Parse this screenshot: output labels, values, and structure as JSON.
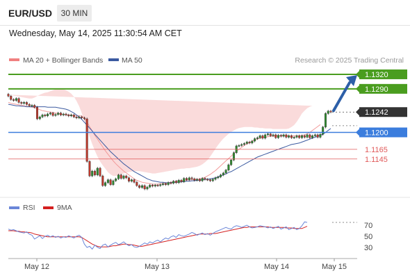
{
  "header": {
    "pair": "EUR/USD",
    "timeframe": "30 MIN"
  },
  "timestamp": "Wednesday, May 14, 2025 11:30:54 AM CET",
  "copyright": "Research © 2025 Trading Central",
  "colors": {
    "up": "#2e8b2e",
    "down": "#c0392b",
    "resistance": "#4a9d1f",
    "pivot": "#3b7ddd",
    "support": "#e05a5a",
    "ma50": "#3b5aa0",
    "bollinger": "#f4b0b0",
    "rsi": "#6a86d8",
    "rsi_ma": "#d42020",
    "last_badge": "#333333",
    "arrow": "#2d5fa8"
  },
  "chart_data": [
    {
      "type": "candlestick",
      "title": "EUR/USD",
      "legend": [
        "MA 20 + Bollinger Bands",
        "MA 50"
      ],
      "legend_position": "top-left",
      "x_ticks": [
        "May 12",
        "May 13",
        "May 14",
        "May 15"
      ],
      "ylim": [
        1.108,
        1.133
      ],
      "levels": [
        {
          "value": 1.132,
          "label": "1.1320",
          "kind": "resistance"
        },
        {
          "value": 1.129,
          "label": "1.1290",
          "kind": "resistance"
        },
        {
          "value": 1.1242,
          "label": "1.1242",
          "kind": "last"
        },
        {
          "value": 1.12,
          "label": "1.1200",
          "kind": "pivot"
        },
        {
          "value": 1.1165,
          "label": "1.1165",
          "kind": "support"
        },
        {
          "value": 1.1145,
          "label": "1.1145",
          "kind": "support"
        }
      ],
      "close": [
        1.1275,
        1.1268,
        1.1266,
        1.127,
        1.1262,
        1.126,
        1.1262,
        1.1258,
        1.1255,
        1.1256,
        1.1252,
        1.1228,
        1.1232,
        1.1236,
        1.1234,
        1.1238,
        1.124,
        1.1235,
        1.1237,
        1.124,
        1.1236,
        1.1238,
        1.1236,
        1.1234,
        1.1236,
        1.1232,
        1.123,
        1.1232,
        1.123,
        1.1228,
        1.114,
        1.111,
        1.112,
        1.1112,
        1.1126,
        1.111,
        1.109,
        1.1096,
        1.1102,
        1.1092,
        1.11,
        1.1104,
        1.1112,
        1.1105,
        1.111,
        1.1106,
        1.1099,
        1.1102,
        1.1097,
        1.109,
        1.1086,
        1.109,
        1.1083,
        1.1087,
        1.1091,
        1.1089,
        1.1091,
        1.109,
        1.1092,
        1.1094,
        1.1092,
        1.1096,
        1.1095,
        1.1099,
        1.1096,
        1.1101,
        1.1098,
        1.1105,
        1.1102,
        1.1106,
        1.1104,
        1.1101,
        1.1103,
        1.11,
        1.1105,
        1.1103,
        1.1102,
        1.11,
        1.1103,
        1.1106,
        1.1108,
        1.1112,
        1.1116,
        1.1122,
        1.1133,
        1.1143,
        1.1158,
        1.1172,
        1.1173,
        1.1175,
        1.1177,
        1.118,
        1.1178,
        1.1182,
        1.1187,
        1.1189,
        1.1193,
        1.1188,
        1.1195,
        1.1197,
        1.1193,
        1.1195,
        1.1189,
        1.1194,
        1.1192,
        1.1195,
        1.119,
        1.1193,
        1.1189,
        1.119,
        1.1193,
        1.1189,
        1.1193,
        1.119,
        1.1195,
        1.1189,
        1.1193,
        1.1195,
        1.119,
        1.1196,
        1.1211,
        1.1239,
        1.1244,
        1.1242
      ],
      "ma50": [
        1.1258,
        1.1257,
        1.1256,
        1.1255,
        1.1255,
        1.1254,
        1.1254,
        1.1253,
        1.1253,
        1.1253,
        1.1253,
        1.1253,
        1.1253,
        1.1253,
        1.1253,
        1.1252,
        1.1252,
        1.1252,
        1.1252,
        1.1251,
        1.125,
        1.1249,
        1.1248,
        1.1246,
        1.1243,
        1.124,
        1.1236,
        1.1232,
        1.1227,
        1.1221,
        1.1215,
        1.1209,
        1.1203,
        1.1196,
        1.119,
        1.1184,
        1.1178,
        1.1172,
        1.1166,
        1.116,
        1.1155,
        1.115,
        1.1145,
        1.114,
        1.1135,
        1.1131,
        1.1127,
        1.1123,
        1.1119,
        1.1116,
        1.1113,
        1.111,
        1.1107,
        1.1104,
        1.1102,
        1.11,
        1.1099,
        1.1098,
        1.1097,
        1.1097,
        1.1096,
        1.1096,
        1.1096,
        1.1097,
        1.1097,
        1.1097,
        1.1098,
        1.1098,
        1.1099,
        1.1099,
        1.11,
        1.11,
        1.1101,
        1.1101,
        1.1102,
        1.1103,
        1.1103,
        1.1104,
        1.1105,
        1.1106,
        1.1108,
        1.111,
        1.1112,
        1.1114,
        1.1117,
        1.1119,
        1.1122,
        1.1125,
        1.1128,
        1.1131,
        1.1134,
        1.1137,
        1.114,
        1.1143,
        1.1146,
        1.1149,
        1.1151,
        1.1153,
        1.1155,
        1.1157,
        1.1159,
        1.1161,
        1.1163,
        1.1165,
        1.1167,
        1.1169,
        1.1171,
        1.1173,
        1.1175,
        1.1176,
        1.1177,
        1.1178,
        1.118,
        1.1182,
        1.1184,
        1.1186,
        1.1188,
        1.119,
        1.1192,
        1.1194,
        1.1196,
        1.12,
        1.1204,
        1.1208
      ],
      "ma20": [
        1.1262,
        1.126,
        1.1259,
        1.1258,
        1.1257,
        1.1256,
        1.1255,
        1.1254,
        1.1253,
        1.1252,
        1.1251,
        1.1249,
        1.1247,
        1.1245,
        1.1244,
        1.1243,
        1.1242,
        1.1241,
        1.124,
        1.1239,
        1.1238,
        1.1237,
        1.1237,
        1.1236,
        1.1236,
        1.1235,
        1.1235,
        1.1234,
        1.1234,
        1.123,
        1.1222,
        1.1212,
        1.1203,
        1.1194,
        1.1186,
        1.1178,
        1.117,
        1.1162,
        1.1155,
        1.1148,
        1.1141,
        1.1135,
        1.113,
        1.1125,
        1.112,
        1.1116,
        1.1112,
        1.1108,
        1.1104,
        1.1101,
        1.1099,
        1.1097,
        1.1096,
        1.1095,
        1.1094,
        1.1093,
        1.1093,
        1.1093,
        1.1094,
        1.1094,
        1.1095,
        1.1096,
        1.1097,
        1.1098,
        1.1099,
        1.11,
        1.11,
        1.1101,
        1.1101,
        1.1102,
        1.1102,
        1.1103,
        1.1103,
        1.1104,
        1.1105,
        1.1107,
        1.111,
        1.1113,
        1.1117,
        1.1121,
        1.1126,
        1.1131,
        1.1136,
        1.1141,
        1.1146,
        1.1151,
        1.1156,
        1.1161,
        1.1165,
        1.1169,
        1.1173,
        1.1176,
        1.1179,
        1.1182,
        1.1184,
        1.1186,
        1.1188,
        1.1189,
        1.119,
        1.1191,
        1.1192,
        1.1192,
        1.1193,
        1.1193,
        1.1193,
        1.1193,
        1.1193,
        1.1193,
        1.1193,
        1.1193,
        1.1193,
        1.1193,
        1.1194,
        1.1195,
        1.1197,
        1.12,
        1.1204,
        1.1208,
        1.1212,
        1.1216
      ],
      "bb_upper": [
        1.1278,
        1.1277,
        1.1276,
        1.1275,
        1.1274,
        1.1273,
        1.1272,
        1.1271,
        1.127,
        1.127,
        1.1272,
        1.1275,
        1.1278,
        1.128,
        1.1282,
        1.1283,
        1.1285,
        1.1287,
        1.1289,
        1.129,
        1.129,
        1.1289,
        1.1287,
        1.1284,
        1.128,
        1.1274,
        1.1265,
        1.1254,
        1.124,
        1.1224,
        1.1207,
        1.1191,
        1.1176,
        1.1162,
        1.115,
        1.114,
        1.1132,
        1.1125,
        1.1118,
        1.1113,
        1.111,
        1.111,
        1.1111,
        1.1113,
        1.1115,
        1.1117,
        1.1118,
        1.1119,
        1.112,
        1.112,
        1.112,
        1.1119,
        1.1118,
        1.1117,
        1.1116,
        1.1115,
        1.1115,
        1.1116,
        1.1117,
        1.1118,
        1.1119,
        1.112,
        1.1121,
        1.1122,
        1.1123,
        1.1124,
        1.1125,
        1.1125,
        1.1126,
        1.1126,
        1.1127,
        1.1128,
        1.1129,
        1.1131,
        1.1134,
        1.1138,
        1.1143,
        1.115,
        1.1158,
        1.1166,
        1.1174,
        1.1181,
        1.1187,
        1.1192,
        1.1197,
        1.1201,
        1.1204,
        1.1207,
        1.1209,
        1.121,
        1.1211,
        1.1211,
        1.1211,
        1.1211,
        1.121,
        1.121,
        1.1209,
        1.1209,
        1.1208,
        1.1208,
        1.1208,
        1.1207,
        1.1207,
        1.1207,
        1.1207,
        1.1207,
        1.1207,
        1.1208,
        1.1211,
        1.1215,
        1.1222,
        1.123,
        1.1239,
        1.1245,
        1.125,
        1.1253,
        1.1255
      ],
      "bb_lower": [
        1.1246,
        1.1244,
        1.1243,
        1.1242,
        1.1241,
        1.124,
        1.1239,
        1.1238,
        1.1237,
        1.1234,
        1.123,
        1.1223,
        1.1216,
        1.121,
        1.1206,
        1.1203,
        1.1199,
        1.1195,
        1.1191,
        1.1188,
        1.1186,
        1.1185,
        1.1186,
        1.1188,
        1.1192,
        1.1196,
        1.1205,
        1.1214,
        1.1228,
        1.1236,
        1.1237,
        1.1233,
        1.123,
        1.1226,
        1.1222,
        1.1216,
        1.1208,
        1.1199,
        1.1192,
        1.1183,
        1.1172,
        1.116,
        1.1149,
        1.1137,
        1.1125,
        1.1115,
        1.1106,
        1.1097,
        1.1088,
        1.1082,
        1.1078,
        1.1075,
        1.1074,
        1.1073,
        1.1072,
        1.1071,
        1.1071,
        1.107,
        1.1071,
        1.107,
        1.1071,
        1.1072,
        1.1073,
        1.1074,
        1.1075,
        1.1076,
        1.1075,
        1.1077,
        1.1076,
        1.1078,
        1.1077,
        1.1078,
        1.1077,
        1.1077,
        1.1076,
        1.1076,
        1.1077,
        1.1076,
        1.1076,
        1.1076,
        1.1078,
        1.1081,
        1.1085,
        1.109,
        1.1095,
        1.1101,
        1.1108,
        1.1115,
        1.1121,
        1.1128,
        1.1135,
        1.1141,
        1.1147,
        1.1153,
        1.1158,
        1.1162,
        1.1167,
        1.1169,
        1.1172,
        1.1174,
        1.1176,
        1.1177,
        1.1179,
        1.1179,
        1.1179,
        1.1179,
        1.1179,
        1.1178,
        1.1175,
        1.1171,
        1.1166,
        1.116,
        1.1153,
        1.115,
        1.115,
        1.1155,
        1.1163,
        1.1171,
        1.1177
      ]
    },
    {
      "type": "line",
      "legend": [
        "RSI",
        "9MA"
      ],
      "legend_position": "top-left",
      "ylim": [
        15,
        85
      ],
      "y_ticks": [
        70,
        50,
        30
      ],
      "rsi": [
        63,
        61,
        62,
        60,
        58,
        57,
        56,
        58,
        54,
        52,
        45,
        48,
        51,
        46,
        50,
        52,
        49,
        51,
        48,
        50,
        47,
        49,
        48,
        51,
        49,
        47,
        50,
        52,
        48,
        36,
        30,
        32,
        27,
        34,
        30,
        28,
        34,
        36,
        31,
        34,
        37,
        39,
        35,
        37,
        40,
        36,
        33,
        35,
        31,
        30,
        32,
        35,
        38,
        36,
        40,
        38,
        41,
        43,
        40,
        44,
        47,
        45,
        49,
        51,
        48,
        53,
        51,
        50,
        52,
        54,
        57,
        55,
        52,
        54,
        56,
        53,
        55,
        52,
        55,
        58,
        60,
        62,
        64,
        66,
        64,
        63,
        67,
        69,
        68,
        66,
        68,
        70,
        67,
        65,
        66,
        67,
        69,
        68,
        67,
        65,
        67,
        64,
        66,
        68,
        63,
        65,
        67,
        62,
        64,
        66,
        62,
        64,
        69,
        76,
        75
      ],
      "ma9": [
        60,
        60,
        60,
        59,
        59,
        58,
        58,
        57,
        57,
        56,
        54,
        53,
        52,
        51,
        50,
        49,
        49,
        49,
        49,
        49,
        49,
        49,
        49,
        49,
        49,
        49,
        49,
        49,
        48,
        45,
        42,
        39,
        36,
        34,
        32,
        31,
        31,
        31,
        31,
        32,
        33,
        33,
        34,
        35,
        36,
        36,
        35,
        35,
        34,
        33,
        32,
        32,
        33,
        34,
        35,
        36,
        37,
        38,
        39,
        40,
        41,
        42,
        43,
        44,
        45,
        46,
        47,
        48,
        49,
        50,
        51,
        52,
        53,
        54,
        54,
        54,
        54,
        55,
        55,
        55,
        56,
        57,
        58,
        59,
        60,
        61,
        62,
        63,
        64,
        65,
        66,
        66,
        67,
        67,
        67,
        67,
        67,
        67,
        67,
        67,
        66,
        66,
        66,
        66,
        66,
        66,
        65,
        65,
        65,
        64,
        64,
        64,
        64,
        66,
        68
      ]
    }
  ]
}
